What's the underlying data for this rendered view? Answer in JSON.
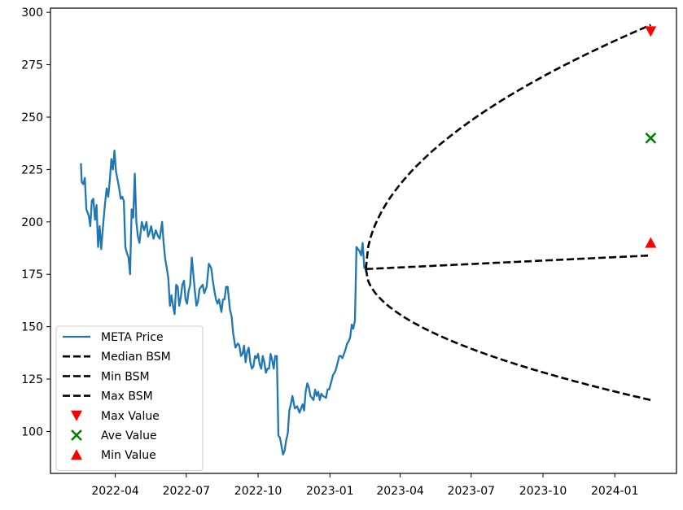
{
  "chart_data": {
    "type": "line",
    "title": "",
    "xlabel": "",
    "ylabel": "",
    "ylim": [
      80,
      302
    ],
    "xlim": [
      "2022-01-08",
      "2024-03-20"
    ],
    "x_ticks": [
      "2022-04",
      "2022-07",
      "2022-10",
      "2023-01",
      "2023-04",
      "2023-07",
      "2023-10",
      "2024-01"
    ],
    "y_ticks": [
      100,
      125,
      150,
      175,
      200,
      225,
      250,
      275,
      300
    ],
    "grid": false,
    "legend_position": "lower-left",
    "series": [
      {
        "name": "META Price",
        "kind": "line",
        "color": "#1f77b4",
        "points": [
          [
            "2022-02-16",
            228
          ],
          [
            "2022-02-17",
            219
          ],
          [
            "2022-02-19",
            218
          ],
          [
            "2022-02-21",
            221
          ],
          [
            "2022-02-23",
            206
          ],
          [
            "2022-02-26",
            203
          ],
          [
            "2022-02-28",
            198
          ],
          [
            "2022-03-02",
            210
          ],
          [
            "2022-03-04",
            211
          ],
          [
            "2022-03-06",
            201
          ],
          [
            "2022-03-08",
            208
          ],
          [
            "2022-03-10",
            188
          ],
          [
            "2022-03-12",
            198
          ],
          [
            "2022-03-14",
            187
          ],
          [
            "2022-03-17",
            201
          ],
          [
            "2022-03-19",
            209
          ],
          [
            "2022-03-21",
            216
          ],
          [
            "2022-03-23",
            212
          ],
          [
            "2022-03-25",
            220
          ],
          [
            "2022-03-27",
            230
          ],
          [
            "2022-03-29",
            225
          ],
          [
            "2022-03-31",
            234
          ],
          [
            "2022-04-02",
            224
          ],
          [
            "2022-04-04",
            220
          ],
          [
            "2022-04-06",
            216
          ],
          [
            "2022-04-08",
            211
          ],
          [
            "2022-04-10",
            212
          ],
          [
            "2022-04-12",
            210
          ],
          [
            "2022-04-14",
            188
          ],
          [
            "2022-04-16",
            185
          ],
          [
            "2022-04-18",
            183
          ],
          [
            "2022-04-20",
            175
          ],
          [
            "2022-04-22",
            206
          ],
          [
            "2022-04-24",
            202
          ],
          [
            "2022-04-26",
            223
          ],
          [
            "2022-04-28",
            200
          ],
          [
            "2022-04-30",
            193
          ],
          [
            "2022-05-02",
            190
          ],
          [
            "2022-05-05",
            200
          ],
          [
            "2022-05-08",
            196
          ],
          [
            "2022-05-11",
            200
          ],
          [
            "2022-05-13",
            193
          ],
          [
            "2022-05-15",
            195
          ],
          [
            "2022-05-17",
            198
          ],
          [
            "2022-05-20",
            192
          ],
          [
            "2022-05-23",
            196
          ],
          [
            "2022-05-26",
            193
          ],
          [
            "2022-05-28",
            192
          ],
          [
            "2022-05-31",
            200
          ],
          [
            "2022-06-02",
            190
          ],
          [
            "2022-06-04",
            182
          ],
          [
            "2022-06-06",
            178
          ],
          [
            "2022-06-08",
            173
          ],
          [
            "2022-06-10",
            160
          ],
          [
            "2022-06-12",
            165
          ],
          [
            "2022-06-14",
            160
          ],
          [
            "2022-06-16",
            156
          ],
          [
            "2022-06-18",
            170
          ],
          [
            "2022-06-20",
            169
          ],
          [
            "2022-06-22",
            160
          ],
          [
            "2022-06-24",
            164
          ],
          [
            "2022-06-26",
            170
          ],
          [
            "2022-06-28",
            172
          ],
          [
            "2022-06-30",
            163
          ],
          [
            "2022-07-02",
            161
          ],
          [
            "2022-07-04",
            167
          ],
          [
            "2022-07-06",
            170
          ],
          [
            "2022-07-08",
            183
          ],
          [
            "2022-07-10",
            175
          ],
          [
            "2022-07-12",
            167
          ],
          [
            "2022-07-14",
            160
          ],
          [
            "2022-07-16",
            162
          ],
          [
            "2022-07-18",
            168
          ],
          [
            "2022-07-20",
            169
          ],
          [
            "2022-07-22",
            170
          ],
          [
            "2022-07-24",
            166
          ],
          [
            "2022-07-27",
            169
          ],
          [
            "2022-07-30",
            180
          ],
          [
            "2022-08-02",
            178
          ],
          [
            "2022-08-04",
            172
          ],
          [
            "2022-08-06",
            167
          ],
          [
            "2022-08-08",
            163
          ],
          [
            "2022-08-10",
            161
          ],
          [
            "2022-08-12",
            163
          ],
          [
            "2022-08-15",
            157
          ],
          [
            "2022-08-17",
            163
          ],
          [
            "2022-08-19",
            163
          ],
          [
            "2022-08-21",
            169
          ],
          [
            "2022-08-23",
            169
          ],
          [
            "2022-08-26",
            158
          ],
          [
            "2022-08-28",
            155
          ],
          [
            "2022-08-30",
            147
          ],
          [
            "2022-09-02",
            140
          ],
          [
            "2022-09-05",
            142
          ],
          [
            "2022-09-07",
            141
          ],
          [
            "2022-09-09",
            136
          ],
          [
            "2022-09-11",
            137
          ],
          [
            "2022-09-13",
            141
          ],
          [
            "2022-09-15",
            133
          ],
          [
            "2022-09-17",
            138
          ],
          [
            "2022-09-19",
            140
          ],
          [
            "2022-09-21",
            133
          ],
          [
            "2022-09-23",
            130
          ],
          [
            "2022-09-25",
            131
          ],
          [
            "2022-09-27",
            136
          ],
          [
            "2022-09-29",
            135
          ],
          [
            "2022-10-01",
            137
          ],
          [
            "2022-10-03",
            132
          ],
          [
            "2022-10-05",
            130
          ],
          [
            "2022-10-07",
            136
          ],
          [
            "2022-10-09",
            133
          ],
          [
            "2022-10-11",
            128
          ],
          [
            "2022-10-13",
            130
          ],
          [
            "2022-10-15",
            130
          ],
          [
            "2022-10-17",
            137
          ],
          [
            "2022-10-19",
            134
          ],
          [
            "2022-10-21",
            130
          ],
          [
            "2022-10-23",
            136
          ],
          [
            "2022-10-25",
            136
          ],
          [
            "2022-10-27",
            98
          ],
          [
            "2022-10-29",
            97
          ],
          [
            "2022-10-31",
            93
          ],
          [
            "2022-11-02",
            89
          ],
          [
            "2022-11-04",
            91
          ],
          [
            "2022-11-06",
            96
          ],
          [
            "2022-11-08",
            99
          ],
          [
            "2022-11-10",
            110
          ],
          [
            "2022-11-12",
            113
          ],
          [
            "2022-11-14",
            117
          ],
          [
            "2022-11-17",
            111
          ],
          [
            "2022-11-20",
            112
          ],
          [
            "2022-11-23",
            109
          ],
          [
            "2022-11-25",
            111
          ],
          [
            "2022-11-27",
            113
          ],
          [
            "2022-11-29",
            110
          ],
          [
            "2022-12-01",
            119
          ],
          [
            "2022-12-03",
            123
          ],
          [
            "2022-12-05",
            121
          ],
          [
            "2022-12-07",
            117
          ],
          [
            "2022-12-09",
            116
          ],
          [
            "2022-12-11",
            115
          ],
          [
            "2022-12-13",
            120
          ],
          [
            "2022-12-15",
            117
          ],
          [
            "2022-12-17",
            119
          ],
          [
            "2022-12-19",
            115
          ],
          [
            "2022-12-21",
            118
          ],
          [
            "2022-12-23",
            117
          ],
          [
            "2022-12-27",
            116
          ],
          [
            "2022-12-29",
            120
          ],
          [
            "2022-12-31",
            120
          ],
          [
            "2023-01-03",
            124
          ],
          [
            "2023-01-05",
            127
          ],
          [
            "2023-01-07",
            128
          ],
          [
            "2023-01-09",
            130
          ],
          [
            "2023-01-11",
            133
          ],
          [
            "2023-01-13",
            136
          ],
          [
            "2023-01-15",
            136
          ],
          [
            "2023-01-17",
            135
          ],
          [
            "2023-01-19",
            137
          ],
          [
            "2023-01-21",
            139
          ],
          [
            "2023-01-23",
            142
          ],
          [
            "2023-01-25",
            143
          ],
          [
            "2023-01-27",
            145
          ],
          [
            "2023-01-29",
            151
          ],
          [
            "2023-01-31",
            149
          ],
          [
            "2023-02-02",
            153
          ],
          [
            "2023-02-04",
            188
          ],
          [
            "2023-02-06",
            187
          ],
          [
            "2023-02-08",
            186
          ],
          [
            "2023-02-10",
            184
          ],
          [
            "2023-02-12",
            190
          ],
          [
            "2023-02-14",
            178
          ],
          [
            "2023-02-16",
            178
          ]
        ]
      },
      {
        "name": "Median BSM",
        "kind": "dashed",
        "color": "#000000",
        "start": [
          "2023-02-16",
          177.5
        ],
        "end": [
          "2024-02-16",
          184
        ],
        "curve": "linear"
      },
      {
        "name": "Min BSM",
        "kind": "dashed",
        "color": "#000000",
        "start": [
          "2023-02-16",
          177.5
        ],
        "end": [
          "2024-02-16",
          115
        ],
        "curve": "sqrt"
      },
      {
        "name": "Max BSM",
        "kind": "dashed",
        "color": "#000000",
        "start": [
          "2023-02-16",
          177.5
        ],
        "end": [
          "2024-02-16",
          294
        ],
        "curve": "sqrt"
      },
      {
        "name": "Max Value",
        "kind": "marker",
        "marker": "triangle-down",
        "color": "#ff0000",
        "point": [
          "2024-02-16",
          291
        ]
      },
      {
        "name": "Ave Value",
        "kind": "marker",
        "marker": "x",
        "color": "#008000",
        "point": [
          "2024-02-16",
          240
        ]
      },
      {
        "name": "Min Value",
        "kind": "marker",
        "marker": "triangle-up",
        "color": "#ff0000",
        "point": [
          "2024-02-16",
          190
        ]
      }
    ]
  }
}
